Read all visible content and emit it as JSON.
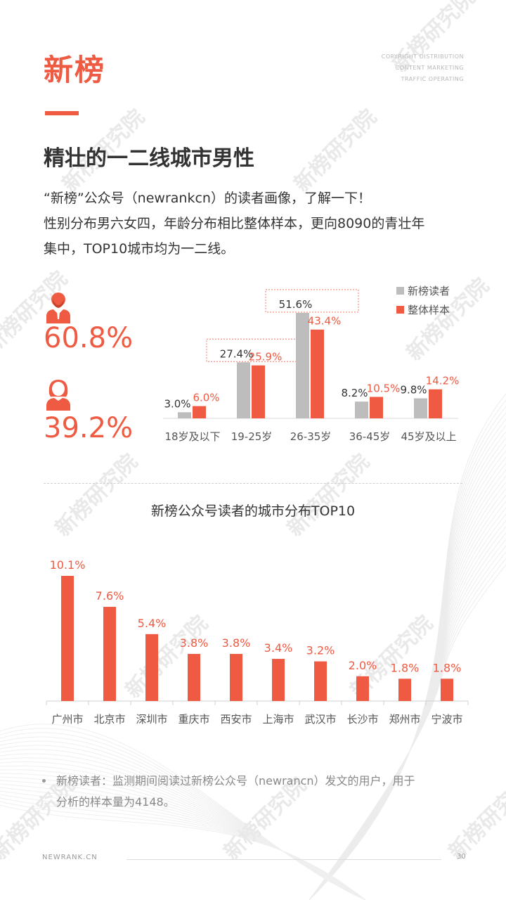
{
  "brand": "新榜",
  "tagline": [
    "COPYRIGHT DISTRIBUTION",
    "CONTENT  MARKETING",
    "TRAFFIC  OPERATING"
  ],
  "heading": "精壮的一二线城市男性",
  "intro": [
    "“新榜”公众号（newrankcn）的读者画像，了解一下！",
    "性别分布男六女四，年龄分布相比整体样本，更向8090的青壮年",
    "集中，TOP10城市均为一二线。"
  ],
  "gender": {
    "male_pct": "60.8%",
    "female_pct": "39.2%",
    "male_icon": "male-user-icon",
    "female_icon": "female-user-icon"
  },
  "watermark": "新榜研究院",
  "colors": {
    "accent": "#ee5a42",
    "gray": "#bdbdbd"
  },
  "chart_data": [
    {
      "type": "bar",
      "categories": [
        "18岁及以下",
        "19-25岁",
        "26-35岁",
        "36-45岁",
        "45岁及以上"
      ],
      "series": [
        {
          "name": "新榜读者",
          "values": [
            3.0,
            27.4,
            51.6,
            8.2,
            9.8
          ],
          "labels": [
            "3.0%",
            "27.4%",
            "51.6%",
            "8.2%",
            "9.8%"
          ],
          "color": "#bdbdbd"
        },
        {
          "name": "整体样本",
          "values": [
            6.0,
            25.9,
            43.4,
            10.5,
            14.2
          ],
          "labels": [
            "6.0%",
            "25.9%",
            "43.4%",
            "10.5%",
            "14.2%"
          ],
          "color": "#ee5a42"
        }
      ],
      "highlight_categories": [
        "19-25岁",
        "26-35岁"
      ],
      "legend_position": "top-right",
      "ylim": [
        0,
        55
      ]
    },
    {
      "type": "bar",
      "title": "新榜公众号读者的城市分布TOP10",
      "categories": [
        "广州市",
        "北京市",
        "深圳市",
        "重庆市",
        "西安市",
        "上海市",
        "武汉市",
        "长沙市",
        "郑州市",
        "宁波市"
      ],
      "values": [
        10.1,
        7.6,
        5.4,
        3.8,
        3.8,
        3.4,
        3.2,
        2.0,
        1.8,
        1.8
      ],
      "labels": [
        "10.1%",
        "7.6%",
        "5.4%",
        "3.8%",
        "3.8%",
        "3.4%",
        "3.2%",
        "2.0%",
        "1.8%",
        "1.8%"
      ],
      "color": "#ee5a42",
      "ylim": [
        0,
        12
      ]
    }
  ],
  "note": {
    "line1": "新榜读者：监测期间阅读过新榜公众号（newrancn）发文的用户，用于",
    "line2": "分析的样本量为4148。"
  },
  "footer": {
    "site": "NEWRANK.CN",
    "page": "30"
  }
}
